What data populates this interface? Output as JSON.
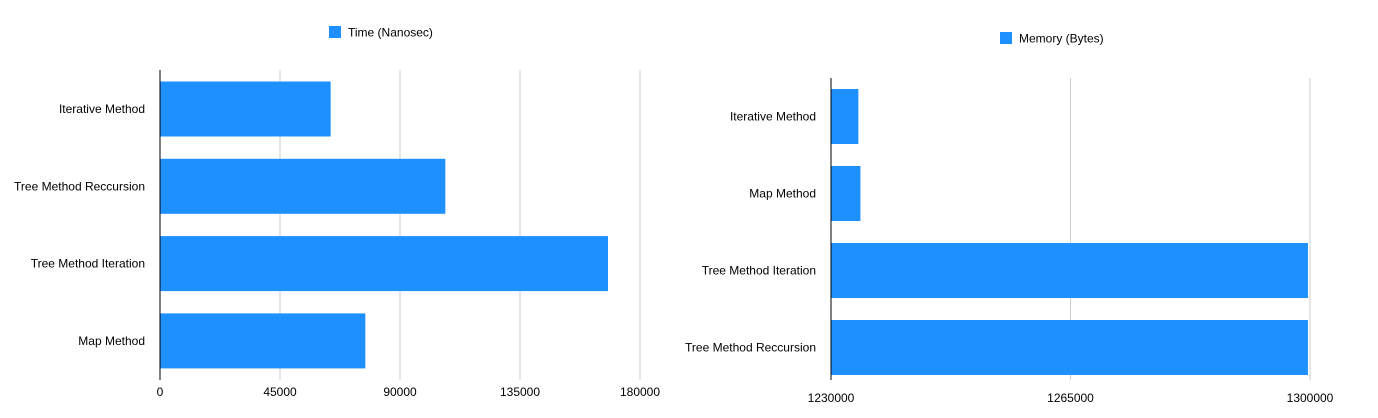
{
  "chart_data": [
    {
      "type": "bar",
      "orientation": "horizontal",
      "categories": [
        "Iterative Method",
        "Tree Method Reccursion",
        "Tree Method Iteration",
        "Map Method"
      ],
      "series": [
        {
          "name": "Time (Nanosec)",
          "values": [
            64000,
            107000,
            168000,
            77000
          ]
        }
      ],
      "xlim": [
        0,
        180000
      ],
      "xticks": [
        "0",
        "45000",
        "90000",
        "135000",
        "180000"
      ],
      "grid": true,
      "legend": "top-center",
      "color": "#1e90ff"
    },
    {
      "type": "bar",
      "orientation": "horizontal",
      "categories": [
        "Iterative Method",
        "Map Method",
        "Tree Method Iteration",
        "Tree Method Reccursion"
      ],
      "series": [
        {
          "name": "Memory (Bytes)",
          "values": [
            1234000,
            1234300,
            1299700,
            1299700
          ]
        }
      ],
      "xlim": [
        1230000,
        1300000
      ],
      "xticks": [
        "1230000",
        "1265000",
        "1300000"
      ],
      "grid": true,
      "legend": "top-center",
      "color": "#1e90ff"
    }
  ]
}
